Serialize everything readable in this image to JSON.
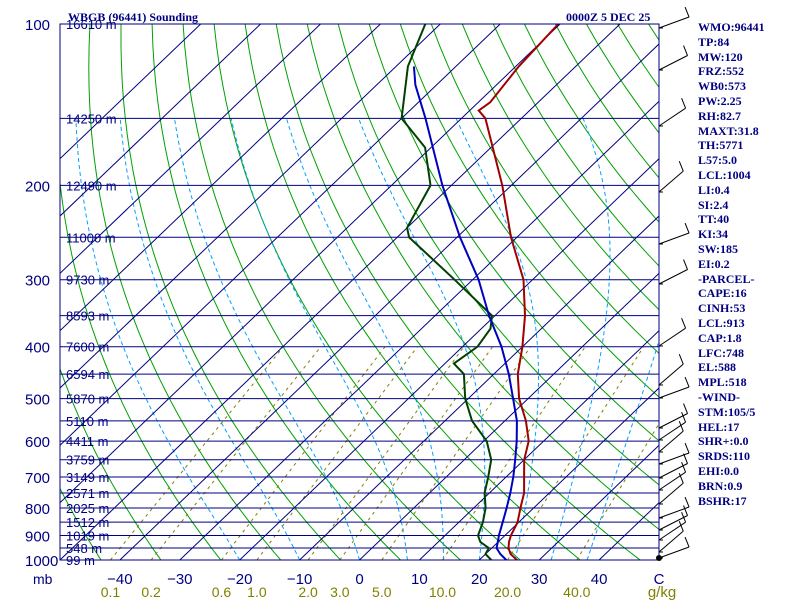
{
  "header": {
    "title": "WBGB (96441) Sounding",
    "time": "0000Z  5 DEC 25"
  },
  "colors": {
    "isobar": "#000080",
    "isotherm": "#000080",
    "dry_adiabat": "#00a000",
    "moist_adiabat": "#00a0ff",
    "mixing_ratio": "#808000",
    "temperature": "#a00000",
    "dewpoint": "#004000",
    "parcel": "#0000c0",
    "tick_text": "#000080",
    "mixing_text": "#808000"
  },
  "chart_data": {
    "type": "skew-t",
    "title": "WBGB (96441) Sounding",
    "time": "0000Z  5 DEC 25",
    "pressure_label": "mb",
    "pressure_ticks": [
      100,
      200,
      300,
      400,
      500,
      600,
      700,
      800,
      900,
      1000
    ],
    "temp_range": [
      -50,
      50
    ],
    "temperature_ticks": [
      {
        "t": -40,
        "label": "−40"
      },
      {
        "t": -30,
        "label": "−30"
      },
      {
        "t": -20,
        "label": "−20"
      },
      {
        "t": -10,
        "label": "−10"
      },
      {
        "t": 0,
        "label": "0"
      },
      {
        "t": 10,
        "label": "10"
      },
      {
        "t": 20,
        "label": "20"
      },
      {
        "t": 30,
        "label": "30"
      },
      {
        "t": 40,
        "label": "40"
      },
      {
        "t": 50,
        "label": "C"
      }
    ],
    "mixing_ratio_label": "g/kg",
    "mixing_ratio_ticks": [
      {
        "w": 0.1,
        "label": "0.1"
      },
      {
        "w": 0.2,
        "label": "0.2"
      },
      {
        "w": 0.6,
        "label": "0.6"
      },
      {
        "w": 1.0,
        "label": "1.0"
      },
      {
        "w": 2.0,
        "label": "2.0"
      },
      {
        "w": 3.0,
        "label": "3.0"
      },
      {
        "w": 5.0,
        "label": "5.0"
      },
      {
        "w": 10.0,
        "label": "10.0"
      },
      {
        "w": 20.0,
        "label": "20.0"
      },
      {
        "w": 40.0,
        "label": "40.0"
      }
    ],
    "height_labels": [
      {
        "p": 100,
        "label": "16610 m"
      },
      {
        "p": 150,
        "label": "14250 m"
      },
      {
        "p": 200,
        "label": "12490 m"
      },
      {
        "p": 250,
        "label": "11000 m"
      },
      {
        "p": 300,
        "label": "9730 m"
      },
      {
        "p": 350,
        "label": "8593 m"
      },
      {
        "p": 400,
        "label": "7600 m"
      },
      {
        "p": 450,
        "label": "6594 m"
      },
      {
        "p": 500,
        "label": "5870 m"
      },
      {
        "p": 550,
        "label": "5110 m"
      },
      {
        "p": 600,
        "label": "4411 m"
      },
      {
        "p": 650,
        "label": "3759 m"
      },
      {
        "p": 700,
        "label": "3149 m"
      },
      {
        "p": 750,
        "label": "2571 m"
      },
      {
        "p": 800,
        "label": "2025 m"
      },
      {
        "p": 850,
        "label": "1512 m"
      },
      {
        "p": 900,
        "label": "1019 m"
      },
      {
        "p": 950,
        "label": "548 m"
      },
      {
        "p": 1000,
        "label": "99 m"
      }
    ],
    "series": [
      {
        "name": "temperature",
        "points": [
          [
            1005,
            25.5
          ],
          [
            1000,
            26.3
          ],
          [
            975,
            24.2
          ],
          [
            950,
            22.8
          ],
          [
            925,
            21.8
          ],
          [
            900,
            21.0
          ],
          [
            850,
            19.8
          ],
          [
            800,
            17.8
          ],
          [
            750,
            15.8
          ],
          [
            700,
            13.0
          ],
          [
            650,
            10.0
          ],
          [
            600,
            7.5
          ],
          [
            550,
            3.5
          ],
          [
            500,
            -1.5
          ],
          [
            450,
            -6.0
          ],
          [
            400,
            -10.0
          ],
          [
            350,
            -15.0
          ],
          [
            300,
            -21.5
          ],
          [
            250,
            -31.0
          ],
          [
            200,
            -41.5
          ],
          [
            150,
            -56.0
          ],
          [
            145,
            -58.5
          ],
          [
            140,
            -58.0
          ],
          [
            120,
            -59.5
          ],
          [
            100,
            -60.3
          ]
        ]
      },
      {
        "name": "dewpoint",
        "points": [
          [
            1005,
            22.5
          ],
          [
            1000,
            22.0
          ],
          [
            975,
            20.0
          ],
          [
            950,
            19.5
          ],
          [
            925,
            17.0
          ],
          [
            900,
            15.5
          ],
          [
            850,
            14.0
          ],
          [
            800,
            12.0
          ],
          [
            750,
            9.2
          ],
          [
            700,
            7.0
          ],
          [
            650,
            4.5
          ],
          [
            600,
            0.5
          ],
          [
            550,
            -5.5
          ],
          [
            500,
            -10.5
          ],
          [
            450,
            -15.0
          ],
          [
            430,
            -18.5
          ],
          [
            400,
            -17.5
          ],
          [
            370,
            -18.5
          ],
          [
            350,
            -20.5
          ],
          [
            300,
            -33.0
          ],
          [
            250,
            -48.0
          ],
          [
            240,
            -50.0
          ],
          [
            200,
            -53.5
          ],
          [
            170,
            -61.0
          ],
          [
            150,
            -70.0
          ],
          [
            120,
            -78.0
          ],
          [
            100,
            -82.5
          ]
        ]
      },
      {
        "name": "parcel",
        "points": [
          [
            1000,
            24.5
          ],
          [
            975,
            22.5
          ],
          [
            950,
            20.8
          ],
          [
            913,
            19.5
          ],
          [
            900,
            19.0
          ],
          [
            850,
            17.3
          ],
          [
            800,
            15.5
          ],
          [
            750,
            13.5
          ],
          [
            700,
            11.2
          ],
          [
            650,
            8.5
          ],
          [
            600,
            5.5
          ],
          [
            550,
            2.0
          ],
          [
            500,
            -2.5
          ],
          [
            450,
            -7.5
          ],
          [
            400,
            -13.5
          ],
          [
            350,
            -21.0
          ],
          [
            300,
            -29.0
          ],
          [
            250,
            -39.5
          ],
          [
            200,
            -51.5
          ],
          [
            150,
            -66.0
          ],
          [
            130,
            -73.5
          ],
          [
            120,
            -77.0
          ]
        ]
      }
    ]
  },
  "indices": [
    "WMO:96441",
    "TP:84",
    "MW:120",
    "FRZ:552",
    "WB0:573",
    "PW:2.25",
    "RH:82.7",
    "MAXT:31.8",
    "TH:5771",
    "L57:5.0",
    "LCL:1004",
    "LI:0.4",
    "SI:2.4",
    "TT:40",
    "KI:34",
    "SW:185",
    "EI:0.2",
    "-PARCEL-",
    "CAPE:16",
    "CINH:53",
    "LCL:913",
    "CAP:1.8",
    "LFC:748",
    "EL:588",
    "MPL:518",
    "-WIND-",
    "STM:105/5",
    "HEL:17",
    "SHR+:0.0",
    "SRDS:110",
    "EHI:0.0",
    "BRN:0.9",
    "BSHR:17"
  ]
}
